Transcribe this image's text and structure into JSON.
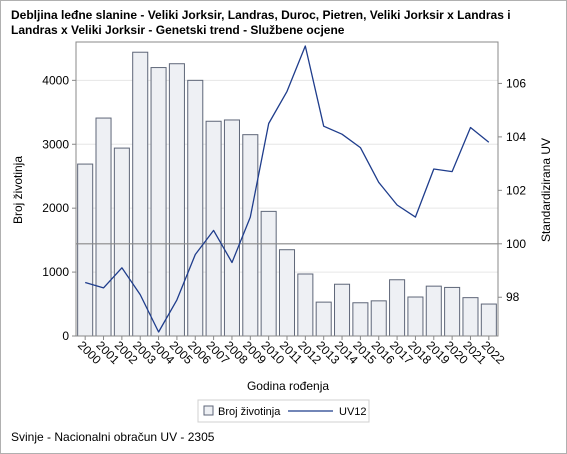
{
  "title": "Debljina leđne slanine - Veliki Jorksir, Landras, Duroc, Pietren, Veliki Jorksir x Landras i Landras x Veliki Jorksir - Genetski trend - Službene ocjene",
  "footnote": "Svinje - Nacionalni obračun UV - 2305",
  "chart_data": {
    "type": "bar+line",
    "title": "Debljina leđne slanine - Veliki Jorksir, Landras, Duroc, Pietren, Veliki Jorksir x Landras i Landras x Veliki Jorksir - Genetski trend - Službene ocjene",
    "xlabel": "Godina rođenja",
    "ylabel": "Broj životinja",
    "y2label": "Standardizirana UV",
    "categories": [
      "2000",
      "2001",
      "2002",
      "2003",
      "2004",
      "2005",
      "2006",
      "2007",
      "2008",
      "2009",
      "2010",
      "2011",
      "2012",
      "2013",
      "2014",
      "2015",
      "2016",
      "2017",
      "2018",
      "2019",
      "2020",
      "2021",
      "2022"
    ],
    "series": [
      {
        "name": "Broj životinja",
        "type": "bar",
        "axis": "left",
        "values": [
          2690,
          3410,
          2940,
          4440,
          4200,
          4260,
          4000,
          3360,
          3380,
          3150,
          1950,
          1350,
          970,
          530,
          810,
          520,
          550,
          880,
          610,
          780,
          760,
          600,
          500
        ]
      },
      {
        "name": "UV12",
        "type": "line",
        "axis": "right",
        "values": [
          98.55,
          98.35,
          99.1,
          98.1,
          96.7,
          97.9,
          99.6,
          100.5,
          99.3,
          101.0,
          104.5,
          105.7,
          107.4,
          104.4,
          104.1,
          103.6,
          102.3,
          101.45,
          101.0,
          102.8,
          102.7,
          104.35,
          103.8
        ]
      }
    ],
    "ylim": [
      0,
      4600
    ],
    "yticks": [
      0,
      1000,
      2000,
      3000,
      4000
    ],
    "y2lim": [
      96.55,
      107.55
    ],
    "y2ticks": [
      98,
      100,
      102,
      104,
      106
    ],
    "reference_line_y2": 100,
    "grid": true,
    "legend_position": "bottom",
    "colors": {
      "bar_fill": "#eef0f4",
      "bar_stroke": "#5e6678",
      "line": "#1f3d8c",
      "axis": "#888888",
      "grid": "#e6e6e6",
      "ref_line": "#888888"
    }
  }
}
